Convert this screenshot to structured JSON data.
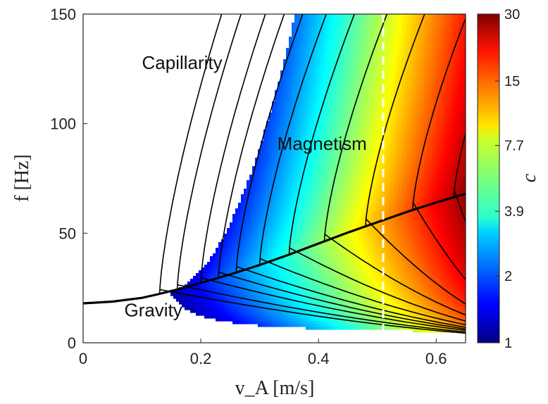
{
  "chart_data": {
    "type": "heatmap",
    "xlabel": "v_A [m/s]",
    "ylabel": "f [Hz]",
    "xlim": [
      0,
      0.65
    ],
    "ylim": [
      0,
      150
    ],
    "x_ticks": [
      0,
      0.2,
      0.4,
      0.6
    ],
    "x_tick_labels": [
      "0",
      "0.2",
      "0.4",
      "0.6"
    ],
    "y_ticks": [
      0,
      50,
      100,
      150
    ],
    "y_tick_labels": [
      "0",
      "50",
      "100",
      "150"
    ],
    "colorbar": {
      "label": "c",
      "scale": "log",
      "range": [
        1,
        30
      ],
      "ticks": [
        1,
        2,
        3.9,
        7.7,
        15,
        30
      ],
      "tick_labels": [
        "1",
        "2",
        "3.9",
        "7.7",
        "15",
        "30"
      ]
    },
    "regions": [
      {
        "label": "Capillarity",
        "x": 0.1,
        "y": 125
      },
      {
        "label": "Magnetism",
        "x": 0.33,
        "y": 88
      },
      {
        "label": "Gravity",
        "x": 0.07,
        "y": 12
      }
    ],
    "boundary_curve": [
      {
        "x": 0.0,
        "y": 18
      },
      {
        "x": 0.05,
        "y": 18.8
      },
      {
        "x": 0.1,
        "y": 20.5
      },
      {
        "x": 0.125,
        "y": 22
      },
      {
        "x": 0.16,
        "y": 24.3
      },
      {
        "x": 0.2,
        "y": 27.3
      },
      {
        "x": 0.25,
        "y": 31.2
      },
      {
        "x": 0.3,
        "y": 35.5
      },
      {
        "x": 0.35,
        "y": 40.2
      },
      {
        "x": 0.4,
        "y": 45.3
      },
      {
        "x": 0.45,
        "y": 50.3
      },
      {
        "x": 0.5,
        "y": 55
      },
      {
        "x": 0.55,
        "y": 59.7
      },
      {
        "x": 0.6,
        "y": 64
      },
      {
        "x": 0.65,
        "y": 68
      }
    ],
    "vertical_dashed_line_x": 0.51,
    "grid": false,
    "legend": "none"
  }
}
